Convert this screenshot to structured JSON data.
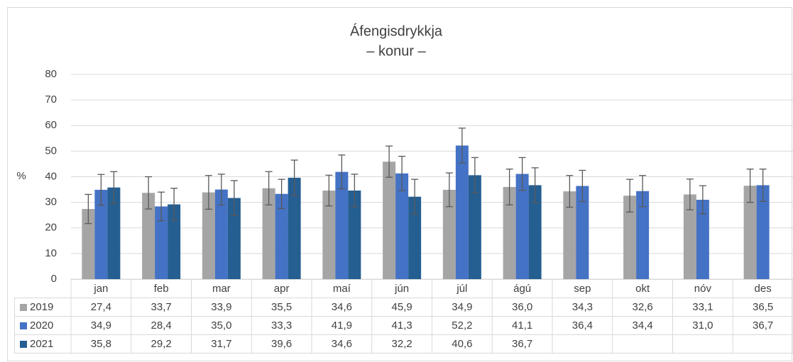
{
  "chart_data": {
    "type": "bar",
    "title": "Áfengisdrykkja",
    "subtitle": "– konur –",
    "y_label": "%",
    "categories": [
      "jan",
      "feb",
      "mar",
      "apr",
      "maí",
      "jún",
      "júl",
      "ágú",
      "sep",
      "okt",
      "nóv",
      "des"
    ],
    "ylim": [
      0,
      80
    ],
    "yticks": [
      0,
      10,
      20,
      30,
      40,
      50,
      60,
      70,
      80
    ],
    "grid": true,
    "series": [
      {
        "name": "2019",
        "color": "#a5a5a5",
        "values": [
          27.4,
          33.7,
          33.9,
          35.5,
          34.6,
          45.9,
          34.9,
          36.0,
          34.3,
          32.6,
          33.1,
          36.5
        ],
        "value_labels": [
          "27,4",
          "33,7",
          "33,9",
          "35,5",
          "34,6",
          "45,9",
          "34,9",
          "36,0",
          "34,3",
          "32,6",
          "33,1",
          "36,5"
        ],
        "errors": [
          5.7,
          6.3,
          6.6,
          6.5,
          6,
          6.1,
          6.6,
          7,
          6.2,
          6.4,
          6,
          6.5
        ]
      },
      {
        "name": "2020",
        "color": "#4472c4",
        "values": [
          34.9,
          28.4,
          35.0,
          33.3,
          41.9,
          41.3,
          52.2,
          41.1,
          36.4,
          34.4,
          31.0,
          36.7
        ],
        "value_labels": [
          "34,9",
          "28,4",
          "35,0",
          "33,3",
          "41,9",
          "41,3",
          "52,2",
          "41,1",
          "36,4",
          "34,4",
          "31,0",
          "36,7"
        ],
        "errors": [
          6,
          5.6,
          6,
          5.7,
          6.6,
          6.7,
          6.8,
          6.4,
          6.1,
          6.1,
          5.5,
          6.3
        ]
      },
      {
        "name": "2021",
        "color": "#255e91",
        "values": [
          35.8,
          29.2,
          31.7,
          39.6,
          34.6,
          32.2,
          40.6,
          36.7,
          null,
          null,
          null,
          null
        ],
        "value_labels": [
          "35,8",
          "29,2",
          "31,7",
          "39,6",
          "34,6",
          "32,2",
          "40,6",
          "36,7",
          null,
          null,
          null,
          null
        ],
        "errors": [
          6.2,
          6.3,
          6.8,
          6.9,
          6.4,
          6.8,
          6.9,
          6.8,
          null,
          null,
          null,
          null
        ]
      }
    ]
  }
}
